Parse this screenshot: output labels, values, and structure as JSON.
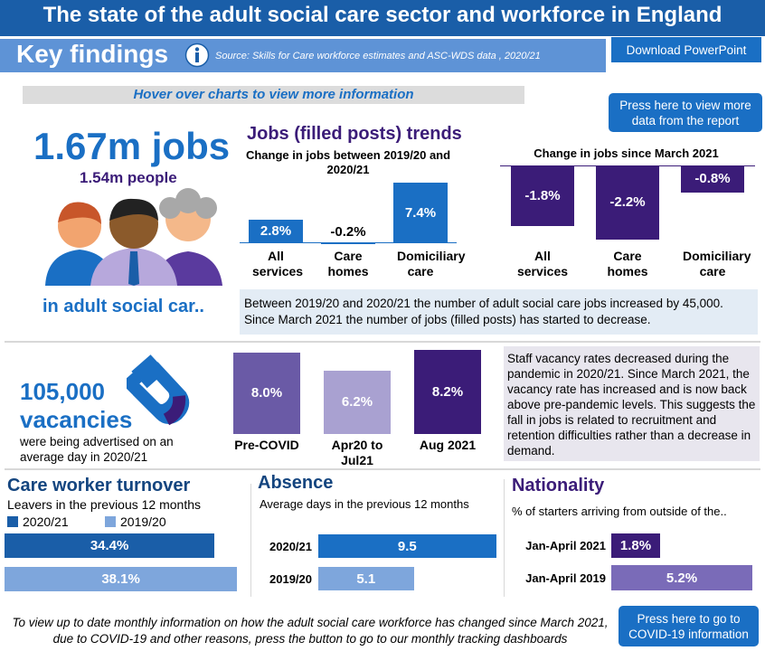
{
  "header": {
    "title": "The state of the adult social care sector and workforce in England",
    "section": "Key findings",
    "source": "Source: Skills for Care workforce estimates and ASC-WDS data , 2020/21",
    "download_button": "Download PowerPoint",
    "hover_note": "Hover over charts to view more information",
    "report_button": "Press here to view more data from the report"
  },
  "jobs": {
    "headline": "1.67m jobs",
    "people": "1.54m people",
    "sector": "in adult social car..",
    "note": "Between 2019/20 and 2020/21 the number of adult social care jobs increased by 45,000. Since March 2021 the number of jobs (filled posts) has started to decrease."
  },
  "vacancies": {
    "number": "105,000",
    "word": "vacancies",
    "caption": "were being advertised on an average day in 2020/21",
    "note": "Staff vacancy rates decreased during the pandemic in 2020/21. Since March 2021, the vacancy rate has increased and is now back above pre-pandemic levels. This suggests the fall in jobs is related to recruitment and retention difficulties rather than a decrease in demand."
  },
  "footer": {
    "text": "To view up to date monthly information on how the adult social care workforce has changed since March 2021, due to COVID-19 and other reasons, press the button to go to our monthly tracking dashboards",
    "button": "Press here to go to COVID-19 information"
  },
  "chart_data": [
    {
      "type": "bar",
      "title": "Jobs (filled posts) trends",
      "subtitle": "Change in jobs between 2019/20 and 2020/21",
      "categories": [
        "All services",
        "Care homes",
        "Domiciliary care"
      ],
      "values": [
        2.8,
        -0.2,
        7.4
      ],
      "value_labels": [
        "2.8%",
        "-0.2%",
        "7.4%"
      ],
      "color": "#1a6fc4",
      "ylim": [
        -1,
        8
      ]
    },
    {
      "type": "bar",
      "title": "Change in jobs since March 2021",
      "categories": [
        "All services",
        "Care homes",
        "Domiciliary care"
      ],
      "values": [
        -1.8,
        -2.2,
        -0.8
      ],
      "value_labels": [
        "-1.8%",
        "-2.2%",
        "-0.8%"
      ],
      "color": "#3b1c78",
      "ylim": [
        -2.5,
        0
      ]
    },
    {
      "type": "bar",
      "categories": [
        "Pre-COVID",
        "Apr20 to Jul21",
        "Aug 2021"
      ],
      "values": [
        8.0,
        6.2,
        8.2
      ],
      "value_labels": [
        "8.0%",
        "6.2%",
        "8.2%"
      ],
      "colors": [
        "#6a5aa6",
        "#a9a1d1",
        "#3b1c78"
      ],
      "ylim": [
        0,
        8.5
      ]
    },
    {
      "type": "barh",
      "title": "Care worker turnover",
      "subtitle": "Leavers in the previous 12 months",
      "series": [
        {
          "name": "2020/21",
          "color": "#1a5ea8",
          "values": [
            34.4
          ],
          "value_labels": [
            "34.4%"
          ]
        },
        {
          "name": "2019/20",
          "color": "#7ea6dc",
          "values": [
            38.1
          ],
          "value_labels": [
            "38.1%"
          ]
        }
      ],
      "xlim": [
        0,
        40
      ]
    },
    {
      "type": "barh",
      "title": "Absence",
      "subtitle": "Average days in the previous 12 months",
      "categories": [
        "2020/21",
        "2019/20"
      ],
      "values": [
        9.5,
        5.1
      ],
      "colors": [
        "#1a6fc4",
        "#7ea6dc"
      ],
      "xlim": [
        0,
        10
      ]
    },
    {
      "type": "barh",
      "title": "Nationality",
      "subtitle": "% of starters arriving from outside of the..",
      "categories": [
        "Jan-April 2021",
        "Jan-April 2019"
      ],
      "values": [
        1.8,
        5.2
      ],
      "value_labels": [
        "1.8%",
        "5.2%"
      ],
      "colors": [
        "#3b1c78",
        "#7a6bb8"
      ],
      "xlim": [
        0,
        5.5
      ]
    }
  ]
}
